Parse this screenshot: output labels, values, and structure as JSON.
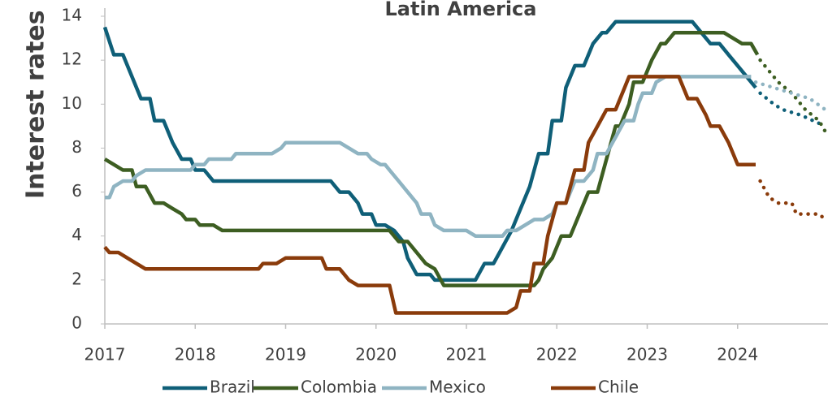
{
  "chart_data": {
    "type": "line",
    "title": "Latin America",
    "y_label": "Interest rates",
    "xlim": [
      2017,
      2025
    ],
    "ylim": [
      0,
      14
    ],
    "xticks": [
      2017,
      2018,
      2019,
      2020,
      2021,
      2022,
      2023,
      2024
    ],
    "yticks": [
      0,
      2,
      4,
      6,
      8,
      10,
      12,
      14
    ],
    "legend": "bottom",
    "series": [
      {
        "name": "Brazil",
        "color": "#0f5f78",
        "x": [
          2017.0,
          2017.1,
          2017.2,
          2017.3,
          2017.4,
          2017.5,
          2017.55,
          2017.65,
          2017.75,
          2017.85,
          2017.95,
          2018.0,
          2018.1,
          2018.2,
          2019.5,
          2019.6,
          2019.7,
          2019.8,
          2019.85,
          2019.95,
          2020.0,
          2020.1,
          2020.2,
          2020.3,
          2020.35,
          2020.45,
          2020.6,
          2020.65,
          2021.1,
          2021.2,
          2021.3,
          2021.4,
          2021.5,
          2021.6,
          2021.7,
          2021.8,
          2021.9,
          2021.95,
          2022.05,
          2022.1,
          2022.2,
          2022.3,
          2022.4,
          2022.5,
          2022.55,
          2022.65,
          2023.5,
          2023.6,
          2023.7,
          2023.8,
          2023.9,
          2024.0,
          2024.1,
          2024.2
        ],
        "values": [
          13.5,
          12.25,
          12.25,
          11.25,
          10.25,
          10.25,
          9.25,
          9.25,
          8.25,
          7.5,
          7.5,
          7.0,
          7.0,
          6.5,
          6.5,
          6.0,
          6.0,
          5.5,
          5.0,
          5.0,
          4.5,
          4.5,
          4.25,
          3.75,
          3.0,
          2.25,
          2.25,
          2.0,
          2.0,
          2.75,
          2.75,
          3.5,
          4.25,
          5.25,
          6.25,
          7.75,
          7.75,
          9.25,
          9.25,
          10.75,
          11.75,
          11.75,
          12.75,
          13.25,
          13.25,
          13.75,
          13.75,
          13.25,
          12.75,
          12.75,
          12.25,
          11.75,
          11.25,
          10.75
        ],
        "forecast": {
          "x": [
            2024.25,
            2024.4,
            2024.5,
            2024.7,
            2024.97
          ],
          "values": [
            10.5,
            10.0,
            9.75,
            9.5,
            9.0
          ]
        }
      },
      {
        "name": "Colombia",
        "color": "#3d5e22",
        "x": [
          2017.0,
          2017.1,
          2017.2,
          2017.3,
          2017.35,
          2017.45,
          2017.55,
          2017.65,
          2017.75,
          2017.85,
          2017.9,
          2018.0,
          2018.05,
          2018.2,
          2018.3,
          2020.15,
          2020.25,
          2020.35,
          2020.45,
          2020.55,
          2020.65,
          2020.75,
          2021.75,
          2021.8,
          2021.85,
          2021.95,
          2022.05,
          2022.15,
          2022.25,
          2022.35,
          2022.45,
          2022.55,
          2022.65,
          2022.7,
          2022.8,
          2022.85,
          2022.95,
          2023.05,
          2023.15,
          2023.2,
          2023.3,
          2023.85,
          2023.95,
          2024.05,
          2024.15,
          2024.22
        ],
        "values": [
          7.5,
          7.25,
          7.0,
          7.0,
          6.25,
          6.25,
          5.5,
          5.5,
          5.25,
          5.0,
          4.75,
          4.75,
          4.5,
          4.5,
          4.25,
          4.25,
          3.75,
          3.75,
          3.25,
          2.75,
          2.5,
          1.75,
          1.75,
          2.0,
          2.5,
          3.0,
          4.0,
          4.0,
          5.0,
          6.0,
          6.0,
          7.5,
          9.0,
          9.0,
          10.0,
          11.0,
          11.0,
          12.0,
          12.75,
          12.75,
          13.25,
          13.25,
          13.0,
          12.75,
          12.75,
          12.25
        ],
        "forecast": {
          "x": [
            2024.25,
            2024.35,
            2024.45,
            2024.6,
            2024.75,
            2024.9,
            2024.97
          ],
          "values": [
            12.0,
            11.5,
            11.0,
            10.5,
            9.75,
            9.25,
            8.75
          ]
        }
      },
      {
        "name": "Mexico",
        "color": "#8fb4c2",
        "x": [
          2017.0,
          2017.05,
          2017.1,
          2017.2,
          2017.3,
          2017.35,
          2017.45,
          2017.95,
          2018.0,
          2018.1,
          2018.15,
          2018.4,
          2018.45,
          2018.85,
          2018.95,
          2019.0,
          2019.6,
          2019.7,
          2019.8,
          2019.9,
          2019.95,
          2020.05,
          2020.1,
          2020.15,
          2020.25,
          2020.35,
          2020.45,
          2020.5,
          2020.6,
          2020.65,
          2020.75,
          2021.0,
          2021.1,
          2021.4,
          2021.45,
          2021.55,
          2021.65,
          2021.75,
          2021.85,
          2021.95,
          2022.0,
          2022.1,
          2022.15,
          2022.2,
          2022.3,
          2022.4,
          2022.45,
          2022.55,
          2022.65,
          2022.75,
          2022.85,
          2022.9,
          2022.95,
          2023.05,
          2023.1,
          2023.2,
          2024.15
        ],
        "values": [
          5.75,
          5.75,
          6.25,
          6.5,
          6.5,
          6.75,
          7.0,
          7.0,
          7.25,
          7.25,
          7.5,
          7.5,
          7.75,
          7.75,
          8.0,
          8.25,
          8.25,
          8.0,
          7.75,
          7.75,
          7.5,
          7.25,
          7.25,
          7.0,
          6.5,
          6.0,
          5.5,
          5.0,
          5.0,
          4.5,
          4.25,
          4.25,
          4.0,
          4.0,
          4.25,
          4.25,
          4.5,
          4.75,
          4.75,
          5.0,
          5.5,
          5.5,
          6.0,
          6.5,
          6.5,
          7.0,
          7.75,
          7.75,
          8.5,
          9.25,
          9.25,
          10.0,
          10.5,
          10.5,
          11.0,
          11.25,
          11.25
        ],
        "forecast": {
          "x": [
            2024.2,
            2024.4,
            2024.6,
            2024.8,
            2024.97
          ],
          "values": [
            11.0,
            10.75,
            10.5,
            10.25,
            9.75
          ]
        }
      },
      {
        "name": "Chile",
        "color": "#8a3b0b",
        "x": [
          2017.0,
          2017.05,
          2017.15,
          2017.25,
          2017.35,
          2017.45,
          2018.7,
          2018.75,
          2018.9,
          2019.0,
          2019.4,
          2019.45,
          2019.6,
          2019.7,
          2019.8,
          2020.15,
          2020.22,
          2021.45,
          2021.55,
          2021.6,
          2021.7,
          2021.75,
          2021.85,
          2021.9,
          2022.0,
          2022.1,
          2022.2,
          2022.3,
          2022.35,
          2022.45,
          2022.55,
          2022.65,
          2022.75,
          2022.8,
          2023.35,
          2023.45,
          2023.55,
          2023.65,
          2023.7,
          2023.8,
          2023.9,
          2024.0,
          2024.2
        ],
        "values": [
          3.5,
          3.25,
          3.25,
          3.0,
          2.75,
          2.5,
          2.5,
          2.75,
          2.75,
          3.0,
          3.0,
          2.5,
          2.5,
          2.0,
          1.75,
          1.75,
          0.5,
          0.5,
          0.75,
          1.5,
          1.5,
          2.75,
          2.75,
          4.0,
          5.5,
          5.5,
          7.0,
          7.0,
          8.25,
          9.0,
          9.75,
          9.75,
          10.75,
          11.25,
          11.25,
          10.25,
          10.25,
          9.5,
          9.0,
          9.0,
          8.25,
          7.25,
          7.25
        ],
        "forecast": {
          "x": [
            2024.25,
            2024.35,
            2024.45,
            2024.6,
            2024.65,
            2024.9,
            2024.97
          ],
          "values": [
            6.5,
            5.75,
            5.5,
            5.5,
            5.0,
            5.0,
            4.75
          ]
        }
      }
    ]
  }
}
